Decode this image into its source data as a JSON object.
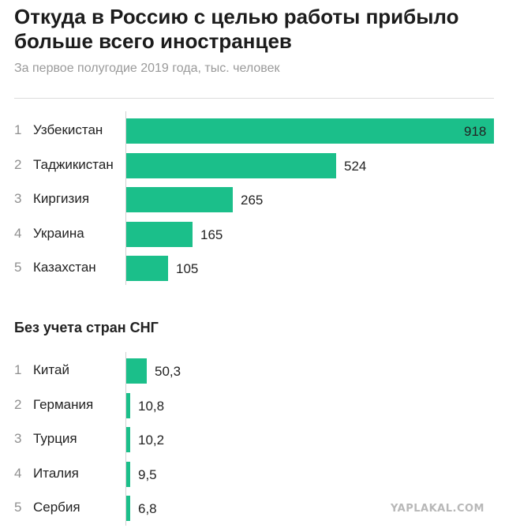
{
  "title": "Откуда в Россию с целью работы прибыло больше всего иностранцев",
  "subtitle": "За первое полугодие 2019 года, тыс. человек",
  "section2_title": "Без учета стран СНГ",
  "watermark": "YAPLAKAL.COM",
  "colors": {
    "bar": "#1bbf8a",
    "text": "#222222",
    "rank": "#8f8f8f"
  },
  "chart_data": [
    {
      "type": "bar",
      "orientation": "horizontal",
      "title": "Откуда в Россию с целью работы прибыло больше всего иностранцев",
      "subtitle": "За первое полугодие 2019 года, тыс. человек",
      "categories": [
        "Узбекистан",
        "Таджикистан",
        "Киргизия",
        "Украина",
        "Казахстан"
      ],
      "ranks": [
        "1",
        "2",
        "3",
        "4",
        "5"
      ],
      "values": [
        918,
        524,
        265,
        165,
        105
      ],
      "value_labels": [
        "918",
        "524",
        "265",
        "165",
        "105"
      ],
      "xlim": [
        0,
        918
      ]
    },
    {
      "type": "bar",
      "orientation": "horizontal",
      "title": "Без учета стран СНГ",
      "categories": [
        "Китай",
        "Германия",
        "Турция",
        "Италия",
        "Сербия"
      ],
      "ranks": [
        "1",
        "2",
        "3",
        "4",
        "5"
      ],
      "values": [
        50.3,
        10.8,
        10.2,
        9.5,
        6.8
      ],
      "value_labels": [
        "50,3",
        "10,8",
        "10,2",
        "9,5",
        "6,8"
      ],
      "xlim": [
        0,
        918
      ]
    }
  ]
}
